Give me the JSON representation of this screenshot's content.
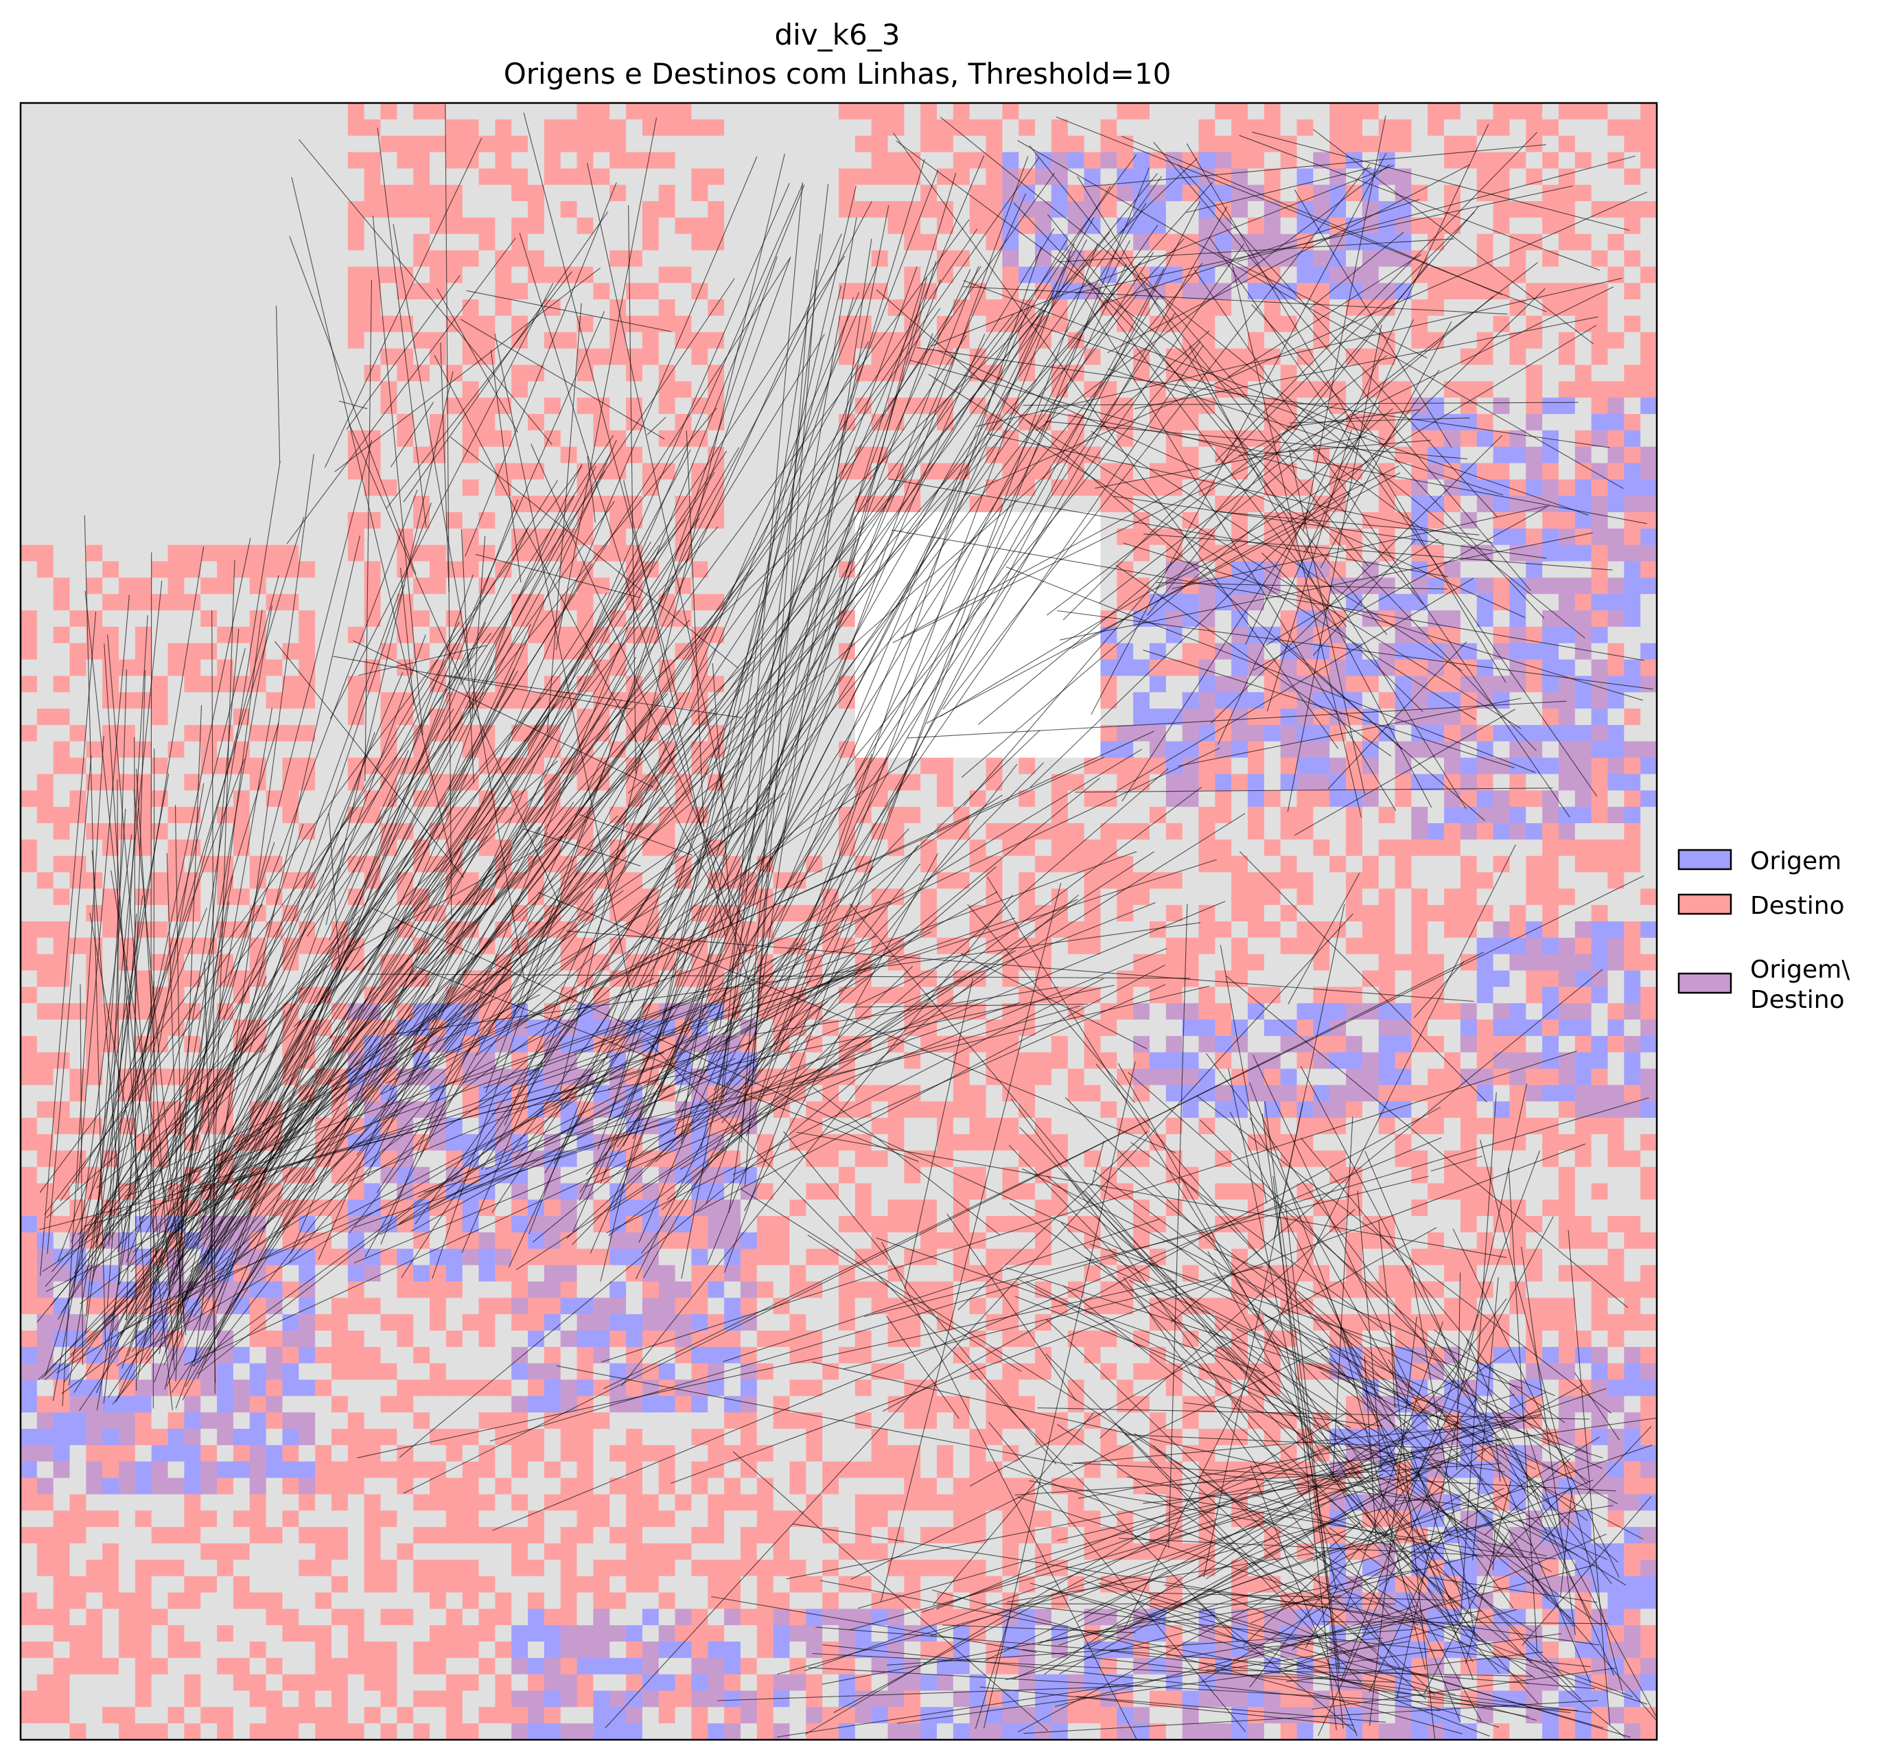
{
  "chart_data": {
    "type": "heatmap",
    "title": "div_k6_3",
    "subtitle": "Origens e Destinos com Linhas, Threshold=10",
    "xlabel": "",
    "ylabel": "",
    "grid": false,
    "ticks": "none",
    "legend_placement": "right",
    "legend": [
      {
        "key": "origin",
        "name_lines": [
          "Origem"
        ],
        "color": "#a0a0ff"
      },
      {
        "key": "destination",
        "name_lines": [
          "Destino"
        ],
        "color": "#ffa0a0"
      },
      {
        "key": "both",
        "name_lines": [
          "Origem\\",
          "Destino"
        ],
        "color": "#c89bcf"
      }
    ],
    "colors": {
      "background_cell": "#e0e0e0",
      "empty_cell": "#ffffff",
      "origin": "#a0a0ff",
      "destination": "#ffa0a0",
      "both": "#c89bcf",
      "flow_line": "#000000"
    },
    "grid_size": [
      100,
      100
    ],
    "origin_regions": [
      {
        "x": [
          60,
          85
        ],
        "y": [
          3,
          12
        ]
      },
      {
        "x": [
          85,
          100
        ],
        "y": [
          18,
          30
        ]
      },
      {
        "x": [
          85,
          100
        ],
        "y": [
          28,
          45
        ]
      },
      {
        "x": [
          70,
          85
        ],
        "y": [
          28,
          43
        ]
      },
      {
        "x": [
          55,
          70
        ],
        "y": [
          30,
          40
        ]
      },
      {
        "x": [
          20,
          45
        ],
        "y": [
          55,
          72
        ]
      },
      {
        "x": [
          0,
          18
        ],
        "y": [
          68,
          85
        ]
      },
      {
        "x": [
          30,
          45
        ],
        "y": [
          68,
          80
        ]
      },
      {
        "x": [
          80,
          100
        ],
        "y": [
          76,
          100
        ]
      },
      {
        "x": [
          30,
          80
        ],
        "y": [
          92,
          100
        ]
      },
      {
        "x": [
          68,
          85
        ],
        "y": [
          55,
          62
        ]
      },
      {
        "x": [
          88,
          100
        ],
        "y": [
          50,
          62
        ]
      }
    ],
    "destination_regions": [
      {
        "x": [
          20,
          43
        ],
        "y": [
          0,
          55
        ]
      },
      {
        "x": [
          0,
          18
        ],
        "y": [
          27,
          100
        ]
      },
      {
        "x": [
          50,
          100
        ],
        "y": [
          0,
          50
        ]
      },
      {
        "x": [
          40,
          100
        ],
        "y": [
          45,
          100
        ]
      },
      {
        "x": [
          15,
          50
        ],
        "y": [
          50,
          100
        ]
      }
    ],
    "empty_regions": [
      {
        "x": [
          51,
          66
        ],
        "y": [
          25,
          40
        ]
      }
    ],
    "flow_clusters": [
      {
        "from": {
          "x": [
            1,
            12
          ],
          "y": [
            66,
            80
          ]
        },
        "to": {
          "x": [
            3,
            15
          ],
          "y": [
            25,
            55
          ]
        },
        "count": 45
      },
      {
        "from": {
          "x": [
            1,
            12
          ],
          "y": [
            66,
            80
          ]
        },
        "to": {
          "x": [
            15,
            45
          ],
          "y": [
            20,
            62
          ]
        },
        "count": 120
      },
      {
        "from": {
          "x": [
            15,
            45
          ],
          "y": [
            56,
            72
          ]
        },
        "to": {
          "x": [
            45,
            75
          ],
          "y": [
            3,
            15
          ]
        },
        "count": 85
      },
      {
        "from": {
          "x": [
            20,
            45
          ],
          "y": [
            56,
            72
          ]
        },
        "to": {
          "x": [
            45,
            75
          ],
          "y": [
            38,
            55
          ]
        },
        "count": 60
      },
      {
        "from": {
          "x": [
            80,
            100
          ],
          "y": [
            78,
            100
          ]
        },
        "to": {
          "x": [
            60,
            95
          ],
          "y": [
            58,
            95
          ]
        },
        "count": 150
      },
      {
        "from": {
          "x": [
            80,
            100
          ],
          "y": [
            78,
            100
          ]
        },
        "to": {
          "x": [
            45,
            80
          ],
          "y": [
            90,
            100
          ]
        },
        "count": 55
      },
      {
        "from": {
          "x": [
            80,
            100
          ],
          "y": [
            0,
            45
          ]
        },
        "to": {
          "x": [
            52,
            80
          ],
          "y": [
            0,
            45
          ]
        },
        "count": 110
      },
      {
        "from": {
          "x": [
            50,
            100
          ],
          "y": [
            45,
            100
          ]
        },
        "to": {
          "x": [
            20,
            90
          ],
          "y": [
            45,
            100
          ]
        },
        "count": 70
      },
      {
        "from": {
          "x": [
            15,
            45
          ],
          "y": [
            0,
            55
          ]
        },
        "to": {
          "x": [
            15,
            45
          ],
          "y": [
            0,
            55
          ]
        },
        "count": 60
      }
    ]
  }
}
